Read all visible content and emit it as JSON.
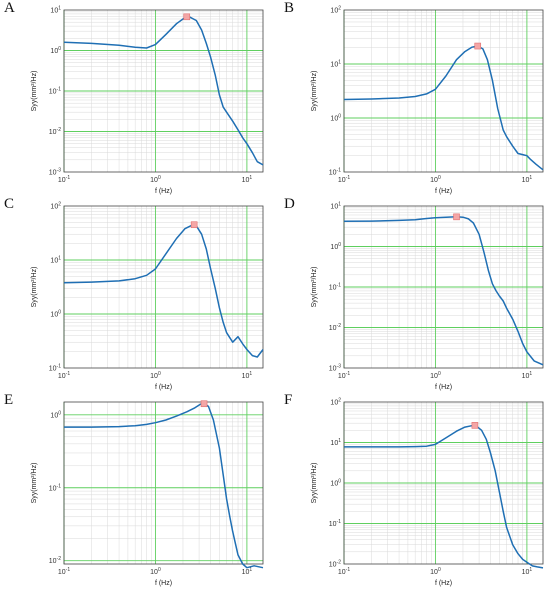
{
  "chart_data": [
    {
      "panel_label": "A",
      "type": "line",
      "scale": "log-log",
      "xlabel": "f (Hz)",
      "ylabel": "Syy(mm²/Hz)",
      "xlim": [
        0.1,
        15
      ],
      "ylim": [
        0.001,
        10
      ],
      "x_tick_labels": [
        "10-1",
        "100",
        "101"
      ],
      "y_tick_labels": [
        "10-3",
        "10-2",
        "10-1",
        "100",
        "101"
      ],
      "grid": "on",
      "series": [
        {
          "x": [
            0.1,
            0.2,
            0.4,
            0.6,
            0.8,
            1.0,
            1.3,
            1.7,
            2.1,
            2.4,
            2.8,
            3.2,
            3.6,
            4.0,
            4.5,
            5.0,
            5.5,
            6.0,
            7.0,
            8.0,
            9.0,
            10.0,
            11.5,
            13.0,
            15.0
          ],
          "y": [
            1.6,
            1.5,
            1.35,
            1.2,
            1.15,
            1.4,
            2.5,
            4.6,
            6.5,
            6.6,
            5.5,
            3.2,
            1.5,
            0.7,
            0.25,
            0.08,
            0.04,
            0.03,
            0.018,
            0.011,
            0.007,
            0.005,
            0.003,
            0.0018,
            0.0015
          ]
        }
      ],
      "peak_marker": {
        "x": 2.2,
        "y": 6.8
      }
    },
    {
      "panel_label": "B",
      "type": "line",
      "scale": "log-log",
      "xlabel": "f (Hz)",
      "ylabel": "Syy(mm²/Hz)",
      "xlim": [
        0.1,
        15
      ],
      "ylim": [
        0.1,
        100
      ],
      "x_tick_labels": [
        "10-1",
        "100",
        "101"
      ],
      "y_tick_labels": [
        "10-1",
        "100",
        "101",
        "102"
      ],
      "grid": "on",
      "series": [
        {
          "x": [
            0.1,
            0.2,
            0.4,
            0.6,
            0.8,
            1.0,
            1.3,
            1.7,
            2.1,
            2.5,
            2.9,
            3.3,
            3.7,
            4.2,
            4.8,
            5.5,
            6.0,
            7.0,
            8.0,
            9.0,
            10.0,
            11.0,
            12.5,
            14.0,
            15.0
          ],
          "y": [
            2.2,
            2.25,
            2.35,
            2.5,
            2.8,
            3.4,
            6.0,
            12.0,
            17.0,
            20.5,
            21.5,
            19.0,
            12.0,
            5.0,
            1.5,
            0.6,
            0.45,
            0.3,
            0.22,
            0.21,
            0.2,
            0.17,
            0.14,
            0.12,
            0.11
          ]
        }
      ],
      "peak_marker": {
        "x": 2.9,
        "y": 21.5
      }
    },
    {
      "panel_label": "C",
      "type": "line",
      "scale": "log-log",
      "xlabel": "f (Hz)",
      "ylabel": "Syy(mm²/Hz)",
      "xlim": [
        0.1,
        15
      ],
      "ylim": [
        0.1,
        100
      ],
      "x_tick_labels": [
        "10-1",
        "100",
        "101"
      ],
      "y_tick_labels": [
        "10-1",
        "100",
        "101",
        "102"
      ],
      "grid": "on",
      "series": [
        {
          "x": [
            0.1,
            0.2,
            0.4,
            0.6,
            0.8,
            1.0,
            1.3,
            1.7,
            2.1,
            2.5,
            2.8,
            3.2,
            3.6,
            4.0,
            4.5,
            5.0,
            5.5,
            6.0,
            7.0,
            8.0,
            9.0,
            10.0,
            11.5,
            13.0,
            15.0
          ],
          "y": [
            3.8,
            3.9,
            4.1,
            4.5,
            5.2,
            6.8,
            13.0,
            25.0,
            38.0,
            44.0,
            43.0,
            30.0,
            16.0,
            7.0,
            3.0,
            1.3,
            0.7,
            0.45,
            0.3,
            0.38,
            0.28,
            0.22,
            0.17,
            0.16,
            0.22
          ]
        }
      ],
      "peak_marker": {
        "x": 2.65,
        "y": 45
      }
    },
    {
      "panel_label": "D",
      "type": "line",
      "scale": "log-log",
      "xlabel": "f (Hz)",
      "ylabel": "Syy(mm²/Hz)",
      "xlim": [
        0.1,
        15
      ],
      "ylim": [
        0.001,
        10
      ],
      "x_tick_labels": [
        "10-1",
        "100",
        "101"
      ],
      "y_tick_labels": [
        "10-3",
        "10-2",
        "10-1",
        "100",
        "101"
      ],
      "grid": "on",
      "series": [
        {
          "x": [
            0.1,
            0.2,
            0.4,
            0.6,
            0.8,
            1.0,
            1.3,
            1.7,
            2.0,
            2.3,
            2.6,
            3.0,
            3.4,
            3.8,
            4.2,
            4.6,
            5.0,
            5.5,
            6.0,
            7.0,
            8.0,
            9.0,
            10.0,
            12.0,
            15.0
          ],
          "y": [
            4.2,
            4.25,
            4.4,
            4.6,
            4.9,
            5.1,
            5.3,
            5.4,
            5.3,
            4.8,
            3.8,
            2.0,
            0.7,
            0.25,
            0.12,
            0.08,
            0.06,
            0.045,
            0.03,
            0.016,
            0.008,
            0.004,
            0.0025,
            0.0015,
            0.0012
          ]
        }
      ],
      "peak_marker": {
        "x": 1.7,
        "y": 5.4
      }
    },
    {
      "panel_label": "E",
      "type": "line",
      "scale": "log-log",
      "xlabel": "f (Hz)",
      "ylabel": "Syy(mm²/Hz)",
      "xlim": [
        0.1,
        15
      ],
      "ylim": [
        0.009,
        1.5
      ],
      "x_tick_labels": [
        "10-1",
        "100",
        "101"
      ],
      "y_tick_labels": [
        "10-2",
        "10-1",
        "100"
      ],
      "grid": "on",
      "series": [
        {
          "x": [
            0.1,
            0.2,
            0.4,
            0.6,
            0.8,
            1.0,
            1.3,
            1.7,
            2.2,
            2.7,
            3.1,
            3.4,
            3.8,
            4.3,
            5.0,
            5.5,
            6.0,
            6.5,
            7.0,
            7.5,
            8.0,
            9.0,
            10.0,
            12.0,
            15.0
          ],
          "y": [
            0.68,
            0.68,
            0.69,
            0.71,
            0.74,
            0.78,
            0.85,
            0.96,
            1.1,
            1.25,
            1.4,
            1.45,
            1.3,
            0.85,
            0.35,
            0.15,
            0.07,
            0.04,
            0.025,
            0.017,
            0.012,
            0.009,
            0.008,
            0.0085,
            0.008
          ]
        }
      ],
      "peak_marker": {
        "x": 3.4,
        "y": 1.42
      }
    },
    {
      "panel_label": "F",
      "type": "line",
      "scale": "log-log",
      "xlabel": "f (Hz)",
      "ylabel": "Syy(mm²/Hz)",
      "xlim": [
        0.1,
        15
      ],
      "ylim": [
        0.01,
        100
      ],
      "x_tick_labels": [
        "10-1",
        "100",
        "101"
      ],
      "y_tick_labels": [
        "10-2",
        "10-1",
        "100",
        "101",
        "102"
      ],
      "grid": "on",
      "series": [
        {
          "x": [
            0.1,
            0.2,
            0.4,
            0.6,
            0.8,
            1.0,
            1.3,
            1.7,
            2.1,
            2.5,
            2.8,
            3.2,
            3.6,
            4.0,
            4.5,
            5.0,
            5.5,
            6.0,
            7.0,
            8.0,
            9.0,
            10.0,
            11.5,
            13.0,
            15.0
          ],
          "y": [
            7.8,
            7.8,
            7.8,
            7.9,
            8.1,
            9.0,
            13.0,
            19.0,
            24.0,
            26.0,
            25.5,
            20.0,
            12.0,
            5.5,
            2.0,
            0.6,
            0.2,
            0.08,
            0.03,
            0.018,
            0.013,
            0.011,
            0.009,
            0.0085,
            0.008
          ]
        }
      ],
      "peak_marker": {
        "x": 2.7,
        "y": 26.5
      }
    }
  ]
}
